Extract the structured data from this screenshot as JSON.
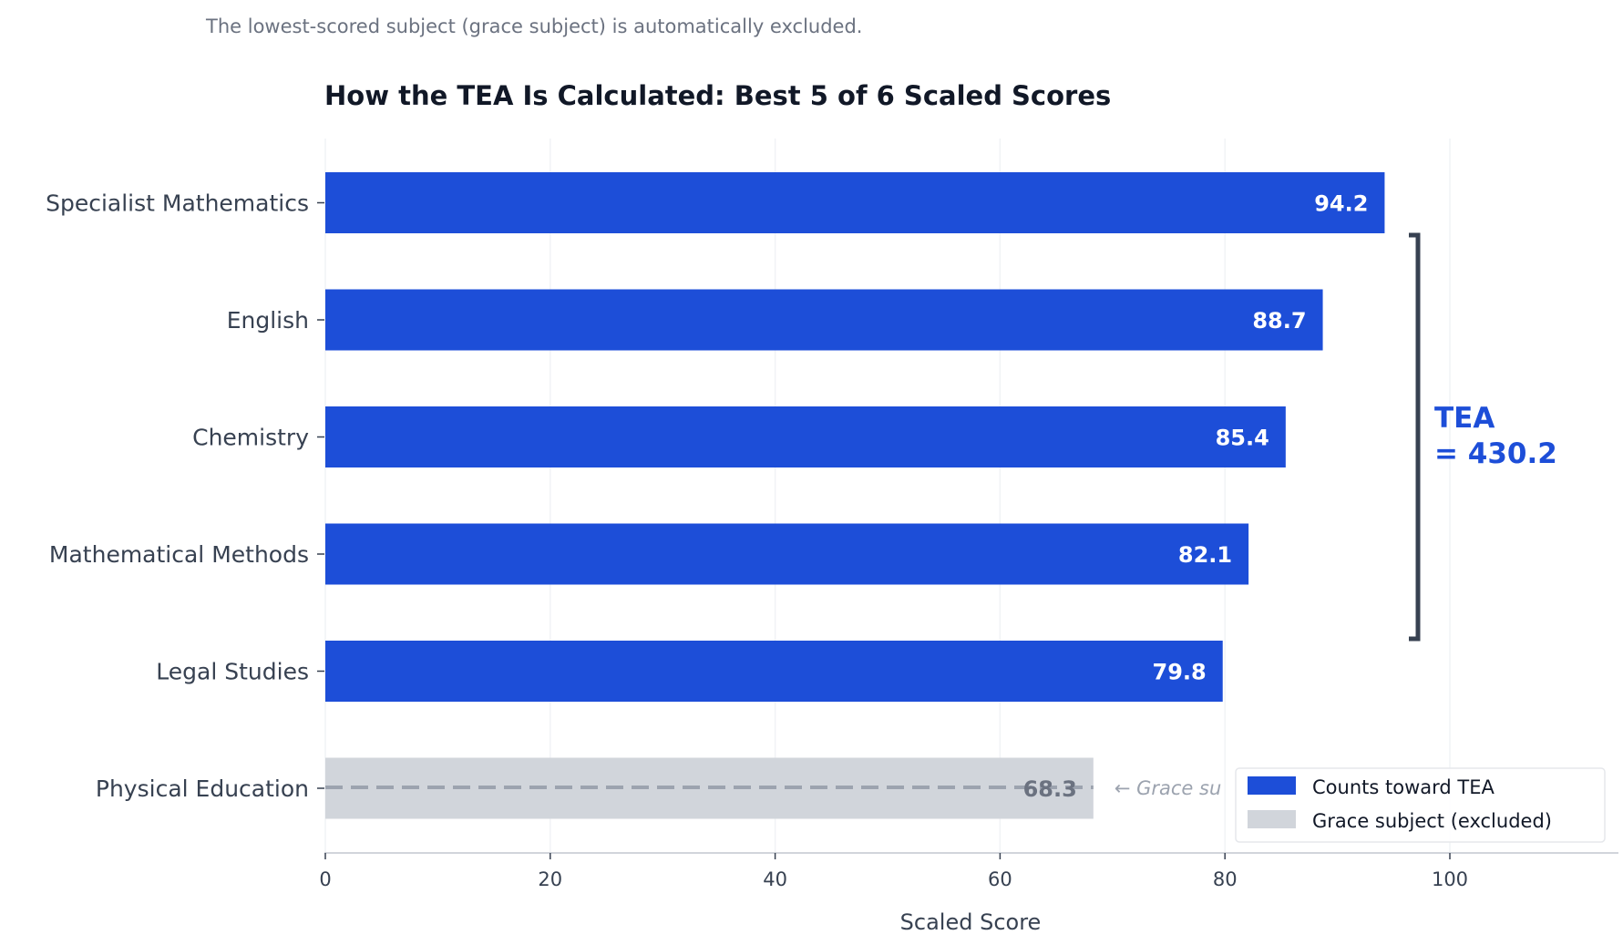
{
  "subtitle": "The lowest-scored subject (grace subject) is automatically excluded.",
  "colors": {
    "counts": "#1d4ed8",
    "grace": "#d1d5db",
    "grace_line": "#9ca3af",
    "bracket": "#374151"
  },
  "chart_data": {
    "type": "bar",
    "orientation": "horizontal",
    "title": "How the TEA Is Calculated: Best 5 of 6 Scaled Scores",
    "xlabel": "Scaled Score",
    "ylabel": "",
    "xlim": [
      0,
      115
    ],
    "xticks": [
      0,
      20,
      40,
      60,
      80,
      100
    ],
    "categories": [
      "Specialist Mathematics",
      "English",
      "Chemistry",
      "Mathematical Methods",
      "Legal Studies",
      "Physical Education"
    ],
    "values": [
      94.2,
      88.7,
      85.4,
      82.1,
      79.8,
      68.3
    ],
    "value_labels": [
      "94.2",
      "88.7",
      "85.4",
      "82.1",
      "79.8",
      "68.3"
    ],
    "counts_toward_tea": [
      true,
      true,
      true,
      true,
      true,
      false
    ],
    "legend": [
      "Counts toward TEA",
      "Grace subject (excluded)"
    ],
    "legend_position": "bottom-right",
    "annotations": {
      "tea_line1": "TEA",
      "tea_line2": "= 430.2",
      "grace_note": "← Grace su"
    }
  }
}
